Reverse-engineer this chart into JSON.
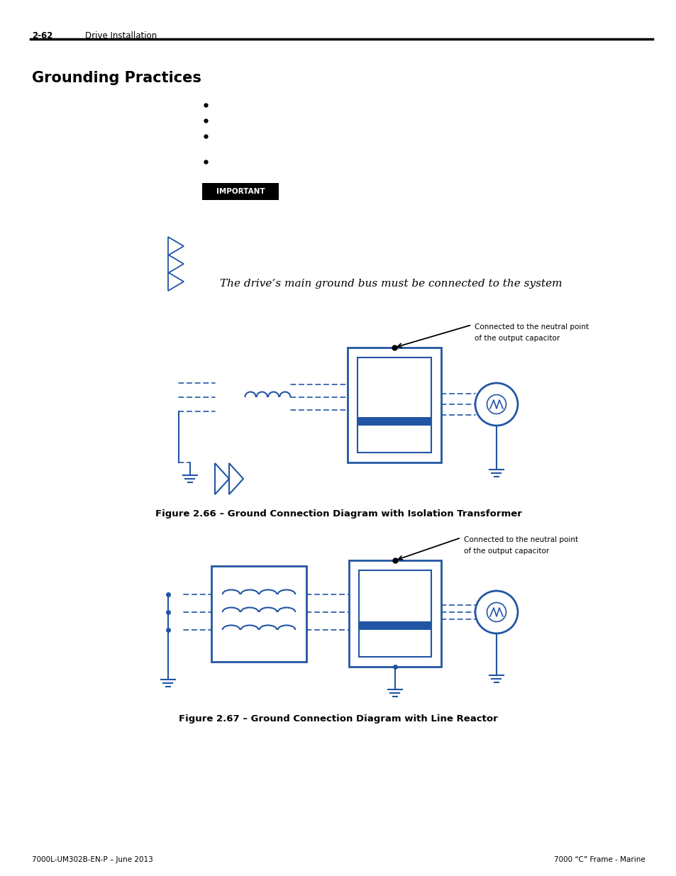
{
  "page_number_left": "2-62",
  "page_header_text": "Drive Installation",
  "section_title": "Grounding Practices",
  "bullet_points": [
    "",
    "",
    "",
    ""
  ],
  "important_label": "IMPORTANT",
  "body_text": "The drive’s main ground bus must be connected to the system",
  "fig1_caption": "Figure 2.66 – Ground Connection Diagram with Isolation Transformer",
  "fig2_caption": "Figure 2.67 – Ground Connection Diagram with Line Reactor",
  "footer_left": "7000L-UM302B-EN-P – June 2013",
  "footer_right": "7000 “C” Frame - Marine",
  "bg_color": "#ffffff",
  "text_color": "#000000",
  "diagram_blue": "#2255a4"
}
